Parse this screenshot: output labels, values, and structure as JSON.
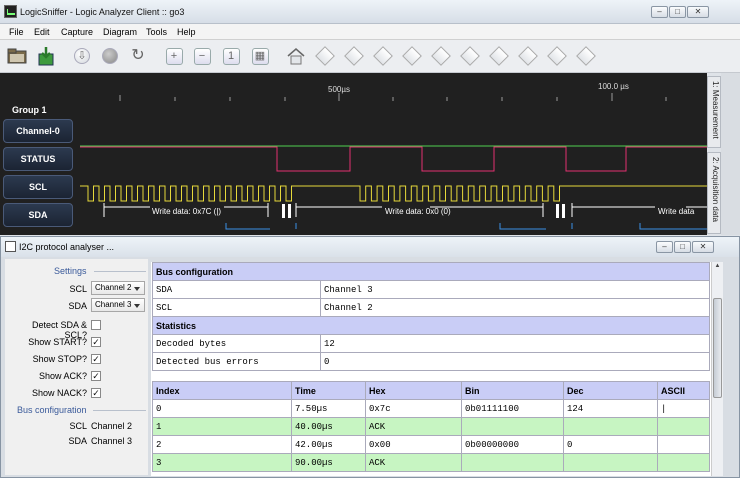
{
  "main_window": {
    "title": "LogicSniffer - Logic Analyzer Client :: go3",
    "menus": [
      "File",
      "Edit",
      "Capture",
      "Diagram",
      "Tools",
      "Help"
    ]
  },
  "toolbar": {
    "icons": [
      "open-folder-icon",
      "save-icon",
      "capture-icon",
      "stop-icon",
      "repeat-icon",
      "zoom-in-icon",
      "zoom-out-icon",
      "zoom-original-icon",
      "zoom-fit-icon",
      "home-icon",
      "marker-1-icon",
      "marker-2-icon",
      "marker-3-icon",
      "marker-4-icon",
      "marker-5-icon",
      "marker-6-icon",
      "marker-7-icon",
      "marker-8-icon",
      "marker-9-icon",
      "marker-10-icon"
    ]
  },
  "scope": {
    "group_label": "Group 1",
    "timeline_labels": [
      "500µs",
      "100.0 µs"
    ],
    "channels": [
      "Channel-0",
      "STATUS",
      "SCL",
      "SDA"
    ],
    "annotations": [
      "Write data: 0x7C (|)",
      "Write data: 0x0 (0)",
      "Write data"
    ],
    "side_tabs": [
      "1: Measurement",
      "2: Acquisition data"
    ]
  },
  "dialog": {
    "title": "I2C protocol analyser ...",
    "settings": {
      "heading": "Settings",
      "scl_label": "SCL",
      "scl_value": "Channel 2",
      "sda_label": "SDA",
      "sda_value": "Channel 3",
      "detect_label": "Detect SDA & SCL?",
      "detect_checked": false,
      "start_label": "Show START?",
      "stop_label": "Show STOP?",
      "ack_label": "Show ACK?",
      "nack_label": "Show NACK?",
      "check_mark": "✓"
    },
    "bus_config_left": {
      "heading": "Bus configuration",
      "scl": "SCL",
      "scl_value": "Channel 2",
      "sda": "SDA",
      "sda_value": "Channel 3"
    },
    "report": {
      "bus_heading": "Bus configuration",
      "bus_rows": [
        [
          "SDA",
          "Channel 3"
        ],
        [
          "SCL",
          "Channel 2"
        ]
      ],
      "stats_heading": "Statistics",
      "stats_rows": [
        [
          "Decoded bytes",
          "12"
        ],
        [
          "Detected bus errors",
          "0"
        ]
      ],
      "columns": [
        "Index",
        "Time",
        "Hex",
        "Bin",
        "Dec",
        "ASCII"
      ],
      "rows": [
        {
          "cells": [
            "0",
            "7.50µs",
            "0x7c",
            "0b01111100",
            "124",
            "|"
          ],
          "ack": false
        },
        {
          "cells": [
            "1",
            "40.00µs",
            "ACK",
            "",
            "",
            ""
          ],
          "ack": true
        },
        {
          "cells": [
            "2",
            "42.00µs",
            "0x00",
            "0b00000000",
            "0",
            ""
          ],
          "ack": false
        },
        {
          "cells": [
            "3",
            "90.00µs",
            "ACK",
            "",
            "",
            ""
          ],
          "ack": true
        }
      ]
    }
  },
  "colors": {
    "channel0": "#4fcf4f",
    "status": "#e2306f",
    "scl": "#e6d93a",
    "sda": "#3a8fe6",
    "annotation": "#ffffff",
    "table_header": "#c9cdf6",
    "ack_row": "#c7f5c2"
  }
}
